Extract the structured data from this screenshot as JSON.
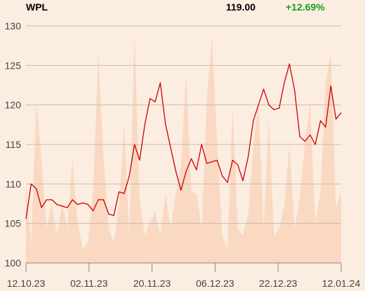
{
  "header": {
    "ticker": "WPL",
    "price": "119.00",
    "change": "+12.69%"
  },
  "colors": {
    "background": "#fcede1",
    "line": "#cc0000",
    "volume": "#f9d9c2",
    "grid": "#c9bcb1",
    "change_positive": "#1a9c1a"
  },
  "chart_data": {
    "type": "line",
    "title": "",
    "xlabel": "",
    "ylabel": "",
    "x_tick_labels": [
      "12.10.23",
      "02.11.23",
      "20.11.23",
      "06.12.23",
      "22.12.23",
      "12.01.24"
    ],
    "y_ticks": [
      100,
      105,
      110,
      115,
      120,
      125,
      130
    ],
    "ylim": [
      100,
      130
    ],
    "grid": "horizontal",
    "series": [
      {
        "values": [
          105.6,
          110.0,
          109.4,
          107.0,
          108.0,
          108.0,
          107.4,
          107.2,
          107.0,
          108.0,
          107.4,
          107.6,
          107.4,
          106.6,
          108.0,
          108.0,
          106.2,
          106.0,
          109.0,
          108.8,
          111.0,
          115.0,
          113.0,
          117.5,
          120.8,
          120.4,
          122.8,
          117.6,
          114.6,
          111.6,
          109.2,
          111.6,
          113.2,
          111.8,
          115.0,
          112.6,
          112.8,
          113.0,
          111.0,
          110.2,
          113.0,
          112.4,
          110.4,
          113.4,
          118.0,
          120.0,
          122.0,
          120.0,
          119.4,
          119.6,
          122.8,
          125.2,
          121.8,
          116.0,
          115.4,
          116.2,
          115.0,
          118.0,
          117.2,
          122.4,
          118.2,
          119.0
        ]
      }
    ],
    "volume": {
      "values": [
        0.33,
        0.09,
        0.69,
        0.46,
        0.15,
        0.26,
        0.12,
        0.26,
        0.15,
        0.45,
        0.18,
        0.06,
        0.09,
        0.31,
        0.91,
        0.46,
        0.15,
        0.09,
        0.25,
        0.6,
        0.12,
        1.0,
        0.28,
        0.12,
        0.18,
        0.22,
        0.12,
        0.3,
        0.15,
        0.3,
        0.42,
        0.83,
        0.31,
        0.3,
        0.15,
        0.71,
        0.98,
        0.53,
        0.12,
        0.06,
        0.68,
        0.15,
        0.12,
        0.21,
        0.51,
        0.7,
        0.15,
        0.63,
        0.12,
        0.15,
        0.25,
        0.51,
        0.15,
        0.28,
        0.52,
        0.7,
        0.18,
        0.31,
        0.78,
        0.91,
        0.24,
        0.31
      ]
    }
  }
}
